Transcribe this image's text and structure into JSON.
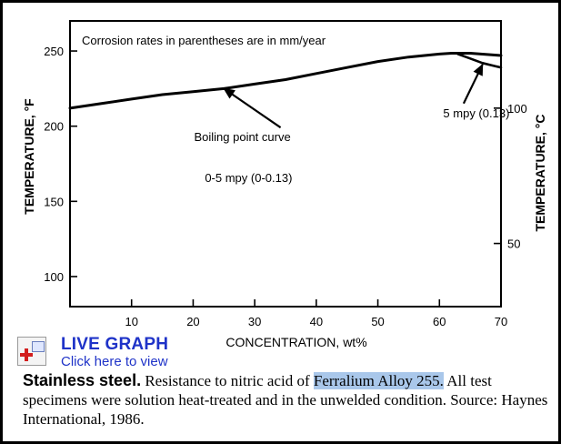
{
  "chart_data": {
    "type": "line",
    "note": "Corrosion rates in parentheses are in mm/year",
    "xlabel": "CONCENTRATION, wt%",
    "ylabel_left": "TEMPERATURE, °F",
    "ylabel_right": "TEMPERATURE, °C",
    "xlim": [
      0,
      70
    ],
    "ylim": [
      80,
      270
    ],
    "x_ticks": [
      10,
      20,
      30,
      40,
      50,
      60,
      70
    ],
    "y_ticks_left": [
      100,
      150,
      200,
      250
    ],
    "y_ticks_right": [
      {
        "label": "50",
        "f": 122
      },
      {
        "label": "100",
        "f": 212
      }
    ],
    "series": [
      {
        "name": "Boiling point curve",
        "x": [
          0,
          5,
          10,
          15,
          20,
          25,
          30,
          35,
          40,
          45,
          50,
          55,
          60,
          62,
          65,
          70
        ],
        "y": [
          212,
          215,
          218,
          221,
          223,
          225,
          228,
          231,
          235,
          239,
          243,
          246,
          248,
          248.5,
          248.5,
          247
        ]
      },
      {
        "name": "5 mpy (0.13)",
        "x": [
          63,
          65,
          67,
          69,
          70
        ],
        "y": [
          248,
          245,
          242,
          240,
          239
        ]
      }
    ],
    "annotations": [
      {
        "text": "Boiling point curve",
        "x": 28,
        "y": 190,
        "arrow_to": [
          25,
          225
        ]
      },
      {
        "text": "5 mpy (0.13)",
        "x": 66,
        "y": 206,
        "arrow_to": [
          67,
          241
        ]
      },
      {
        "text": "0-5 mpy (0-0.13)",
        "x": 29,
        "y": 163
      }
    ]
  },
  "live_graph": {
    "title": "LIVE GRAPH",
    "link": "Click here to view"
  },
  "caption": {
    "lead": "Stainless steel.",
    "before": " Resistance to nitric acid of ",
    "highlight": "Ferralium Alloy 255.",
    "after": " All test specimens were solution heat-treated and in the unwelded condition. Source: Haynes International, 1986."
  }
}
